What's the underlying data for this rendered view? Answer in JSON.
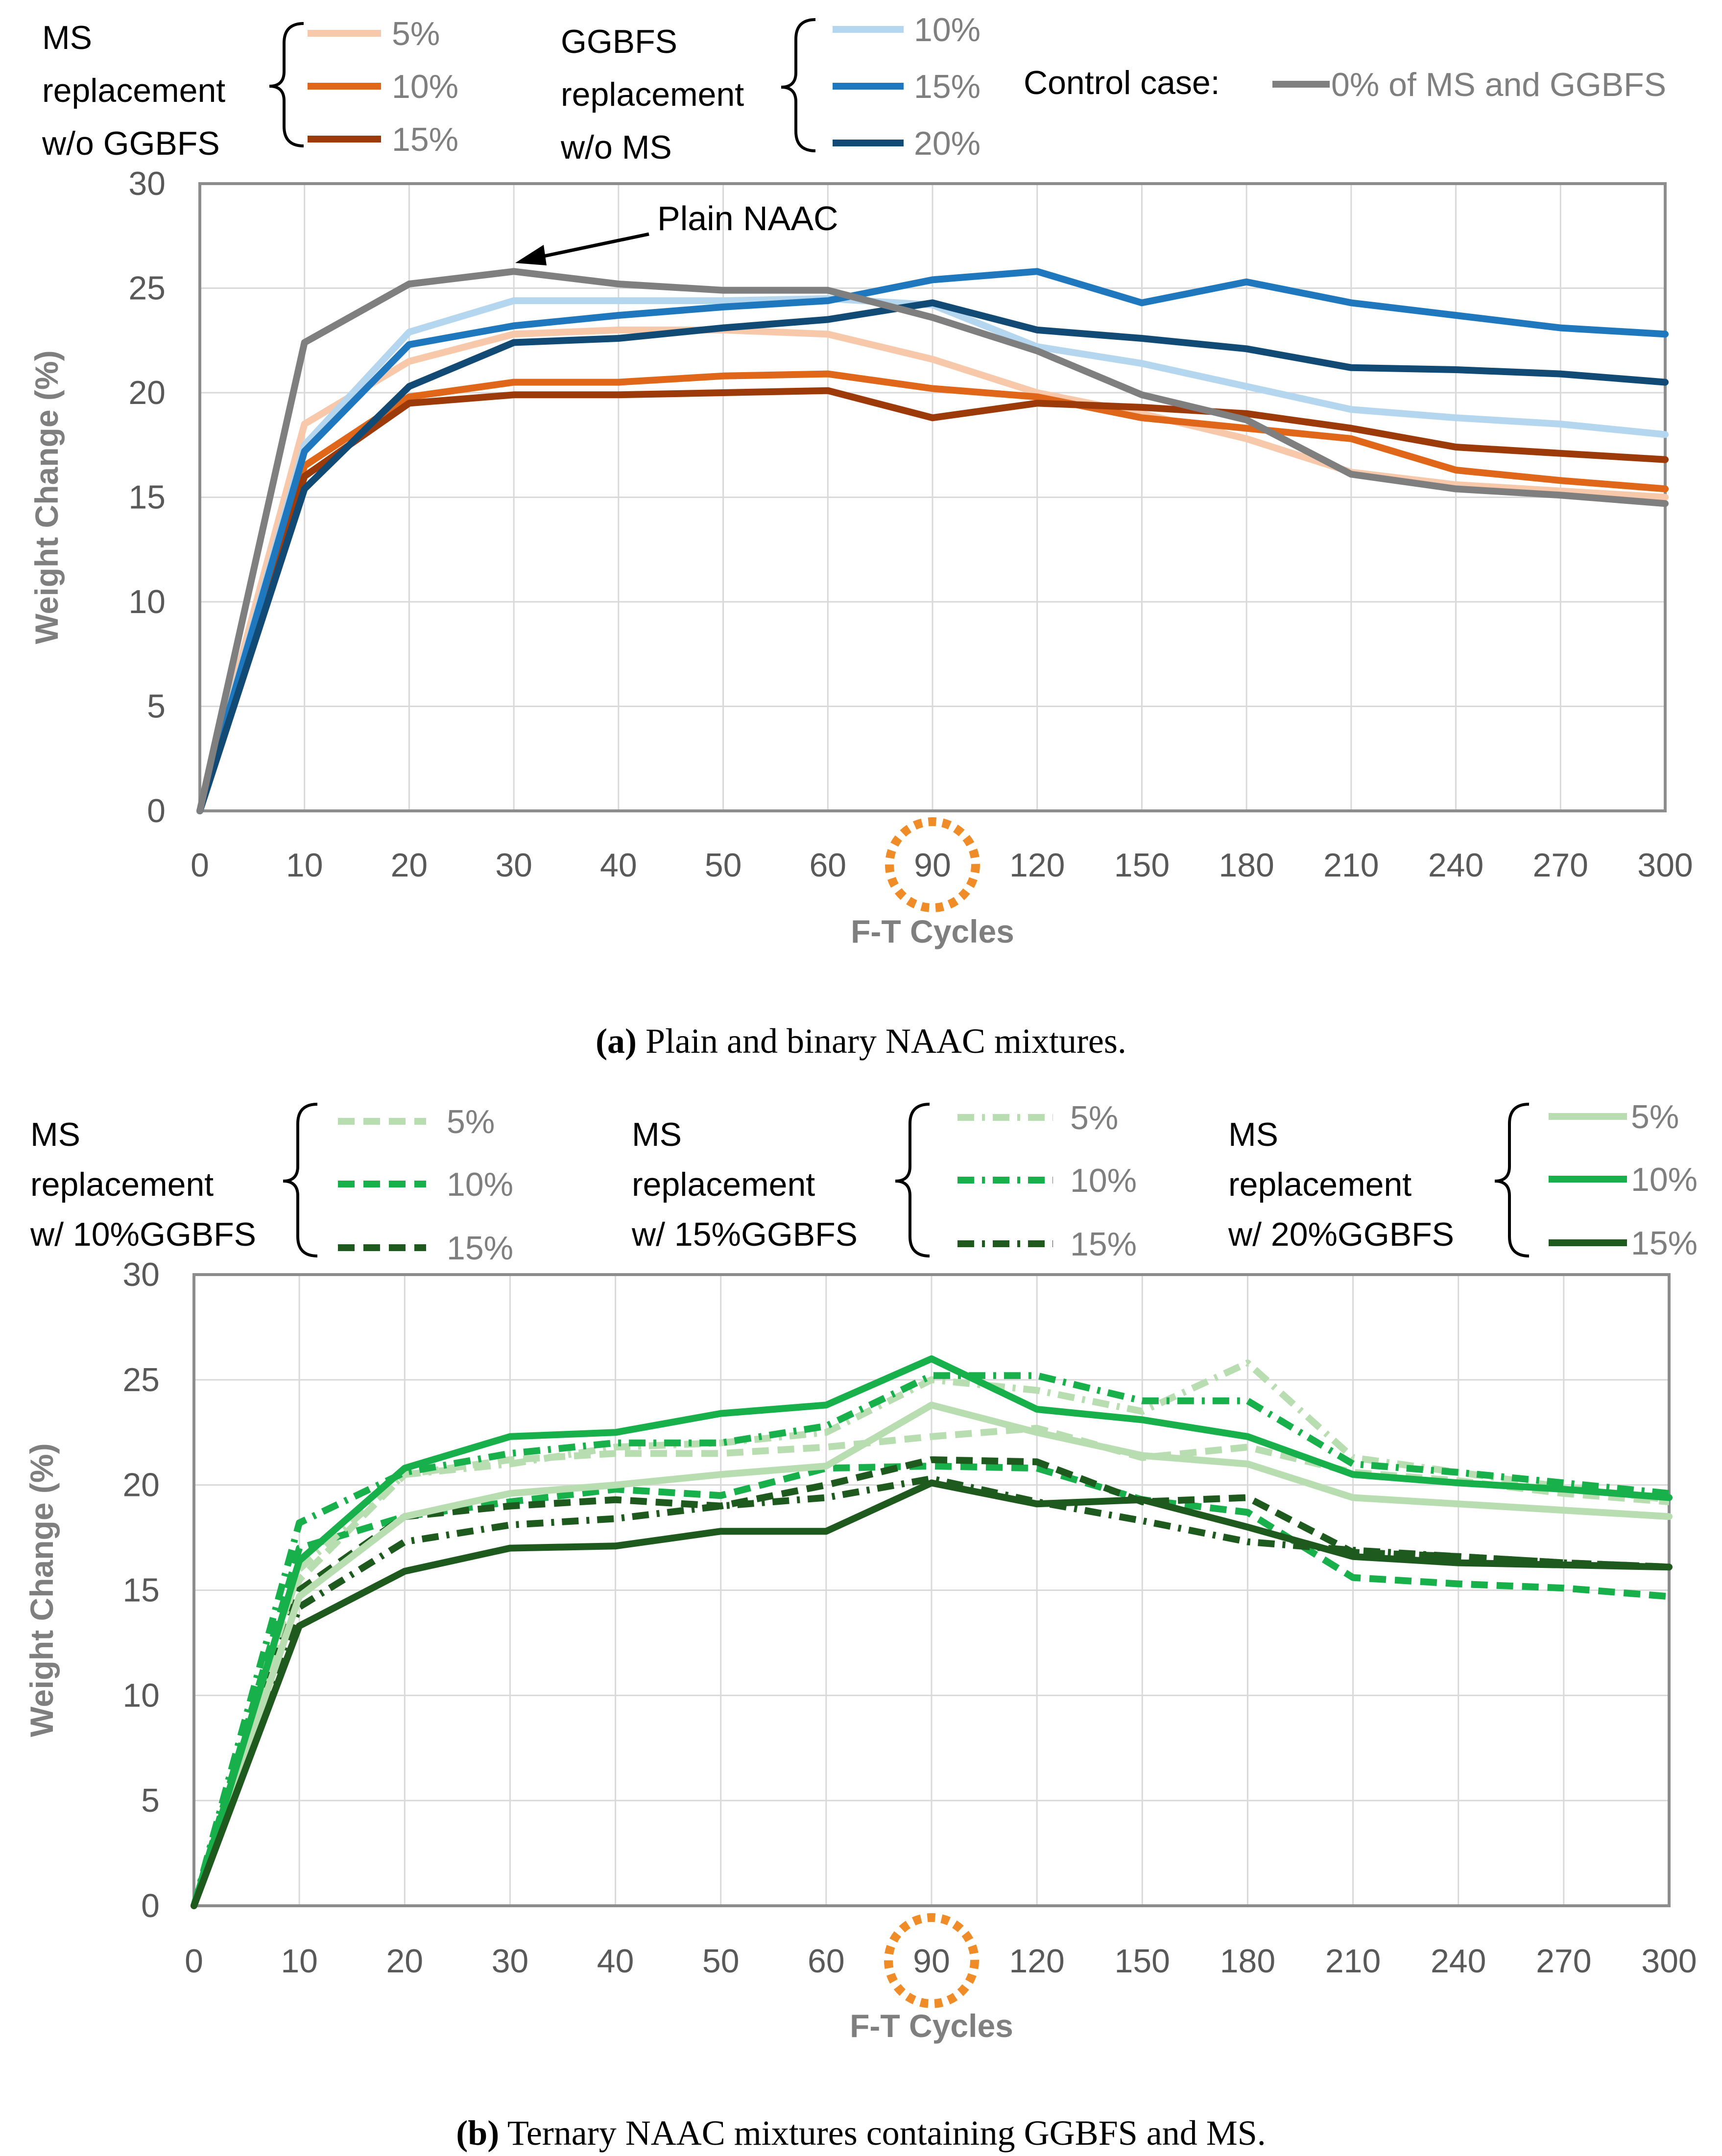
{
  "colors": {
    "ms5": "#f8c8aa",
    "ms10": "#e0661a",
    "ms15": "#9c3a0a",
    "gg10": "#b4d6ee",
    "gg15": "#1f78bd",
    "gg20": "#104a75",
    "control": "#7f7f7f",
    "tern5": "#b8ddb0",
    "tern10": "#17b04a",
    "tern15": "#1e5a1e",
    "axis_text": "#595959",
    "axis_title": "#7f7f7f",
    "grid": "#d9d9d9",
    "highlight": "#f08c28"
  },
  "chart_data": [
    {
      "id": "a",
      "type": "line",
      "caption_label": "(a)",
      "caption_text": " Plain and binary NAAC mixtures.",
      "xlabel": "F-T Cycles",
      "ylabel": "Weight Change (%)",
      "ylim": [
        0,
        30
      ],
      "yticks": [
        0,
        5,
        10,
        15,
        20,
        25,
        30
      ],
      "categories": [
        "0",
        "10",
        "20",
        "30",
        "40",
        "50",
        "60",
        "90",
        "120",
        "150",
        "180",
        "210",
        "240",
        "270",
        "300"
      ],
      "highlighted_category": "90",
      "annotation": "Plain NAAC",
      "legend_groups": [
        {
          "label_lines": [
            "MS",
            "replacement",
            "w/o GGBFS"
          ],
          "entries": [
            "ms5",
            "ms10",
            "ms15"
          ]
        },
        {
          "label_lines": [
            "GGBFS",
            "replacement",
            "w/o MS"
          ],
          "entries": [
            "gg10",
            "gg15",
            "gg20"
          ]
        },
        {
          "label_lines": [
            "Control case:"
          ],
          "entries": [
            "control"
          ]
        }
      ],
      "series": [
        {
          "key": "ms5",
          "name": "5%",
          "dash": "solid",
          "values": [
            0,
            18.5,
            21.5,
            22.8,
            23.0,
            23.0,
            22.8,
            21.6,
            20.0,
            19.0,
            17.8,
            16.2,
            15.6,
            15.3,
            15.0
          ]
        },
        {
          "key": "ms10",
          "name": "10%",
          "dash": "solid",
          "values": [
            0,
            16.5,
            19.8,
            20.5,
            20.5,
            20.8,
            20.9,
            20.2,
            19.8,
            18.8,
            18.3,
            17.8,
            16.3,
            15.8,
            15.4
          ]
        },
        {
          "key": "ms15",
          "name": "15%",
          "dash": "solid",
          "values": [
            0,
            16.0,
            19.5,
            19.9,
            19.9,
            20.0,
            20.1,
            18.8,
            19.5,
            19.3,
            19.0,
            18.3,
            17.4,
            17.1,
            16.8
          ]
        },
        {
          "key": "gg10",
          "name": "10%",
          "dash": "solid",
          "values": [
            0,
            17.5,
            22.9,
            24.4,
            24.4,
            24.4,
            24.5,
            24.2,
            22.2,
            21.4,
            20.3,
            19.2,
            18.8,
            18.5,
            18.0
          ]
        },
        {
          "key": "gg15",
          "name": "15%",
          "dash": "solid",
          "values": [
            0,
            17.2,
            22.3,
            23.2,
            23.7,
            24.1,
            24.4,
            25.4,
            25.8,
            24.3,
            25.3,
            24.3,
            23.7,
            23.1,
            22.8
          ]
        },
        {
          "key": "gg20",
          "name": "20%",
          "dash": "solid",
          "values": [
            0,
            15.4,
            20.3,
            22.4,
            22.6,
            23.1,
            23.5,
            24.3,
            23.0,
            22.6,
            22.1,
            21.2,
            21.1,
            20.9,
            20.5
          ]
        },
        {
          "key": "control",
          "name": "0% of MS and GGBFS",
          "dash": "solid",
          "values": [
            0,
            22.4,
            25.2,
            25.8,
            25.2,
            24.9,
            24.9,
            23.6,
            22.0,
            19.9,
            18.7,
            16.1,
            15.4,
            15.1,
            14.7
          ]
        }
      ]
    },
    {
      "id": "b",
      "type": "line",
      "caption_label": "(b)",
      "caption_text": " Ternary NAAC mixtures containing GGBFS and MS.",
      "xlabel": "F-T Cycles",
      "ylabel": "Weight Change (%)",
      "ylim": [
        0,
        30
      ],
      "yticks": [
        0,
        5,
        10,
        15,
        20,
        25,
        30
      ],
      "categories": [
        "0",
        "10",
        "20",
        "30",
        "40",
        "50",
        "60",
        "90",
        "120",
        "150",
        "180",
        "210",
        "240",
        "270",
        "300"
      ],
      "highlighted_category": "90",
      "legend_groups": [
        {
          "label_lines": [
            "MS",
            "replacement",
            "w/ 10%GGBFS"
          ],
          "entries": [
            "g10_5",
            "g10_10",
            "g10_15"
          ]
        },
        {
          "label_lines": [
            "MS",
            "replacement",
            "w/ 15%GGBFS"
          ],
          "entries": [
            "g15_5",
            "g15_10",
            "g15_15"
          ]
        },
        {
          "label_lines": [
            "MS",
            "replacement",
            "w/ 20%GGBFS"
          ],
          "entries": [
            "g20_5",
            "g20_10",
            "g20_15"
          ]
        }
      ],
      "series": [
        {
          "key": "g10_5",
          "name": "5%",
          "color": "tern5",
          "dash": "dash",
          "values": [
            0,
            15.5,
            20.5,
            21.2,
            21.5,
            21.5,
            21.8,
            22.3,
            22.7,
            21.3,
            21.8,
            20.6,
            20.2,
            19.6,
            19.2
          ]
        },
        {
          "key": "g10_10",
          "name": "10%",
          "color": "tern10",
          "dash": "dash",
          "values": [
            0,
            17.0,
            18.5,
            19.2,
            19.8,
            19.5,
            20.8,
            20.9,
            20.8,
            19.3,
            18.7,
            15.6,
            15.3,
            15.1,
            14.7
          ]
        },
        {
          "key": "g10_15",
          "name": "15%",
          "color": "tern15",
          "dash": "dash",
          "values": [
            0,
            15.0,
            18.5,
            19.0,
            19.3,
            19.0,
            20.0,
            21.2,
            21.1,
            19.2,
            19.4,
            16.8,
            16.6,
            16.3,
            16.1
          ]
        },
        {
          "key": "g15_5",
          "name": "5%",
          "color": "tern5",
          "dash": "dashdot",
          "values": [
            0,
            16.0,
            20.5,
            21.0,
            21.8,
            22.0,
            22.5,
            25.0,
            24.5,
            23.5,
            25.8,
            21.3,
            20.6,
            19.9,
            19.3
          ]
        },
        {
          "key": "g15_10",
          "name": "10%",
          "color": "tern10",
          "dash": "dashdot",
          "values": [
            0,
            18.2,
            20.6,
            21.5,
            22.0,
            22.0,
            22.8,
            25.2,
            25.2,
            24.0,
            24.0,
            21.0,
            20.6,
            20.1,
            19.6
          ]
        },
        {
          "key": "g15_15",
          "name": "15%",
          "color": "tern15",
          "dash": "dashdot",
          "values": [
            0,
            14.2,
            17.3,
            18.1,
            18.4,
            19.0,
            19.4,
            20.3,
            19.2,
            18.3,
            17.3,
            16.9,
            16.6,
            16.3,
            16.1
          ]
        },
        {
          "key": "g20_5",
          "name": "5%",
          "color": "tern5",
          "dash": "solid",
          "values": [
            0,
            14.7,
            18.5,
            19.6,
            20.0,
            20.5,
            20.9,
            23.8,
            22.5,
            21.4,
            21.0,
            19.4,
            19.1,
            18.8,
            18.5
          ]
        },
        {
          "key": "g20_10",
          "name": "10%",
          "color": "tern10",
          "dash": "solid",
          "values": [
            0,
            16.4,
            20.8,
            22.3,
            22.5,
            23.4,
            23.8,
            26.0,
            23.6,
            23.1,
            22.3,
            20.5,
            20.1,
            19.8,
            19.4
          ]
        },
        {
          "key": "g20_15",
          "name": "15%",
          "color": "tern15",
          "dash": "solid",
          "values": [
            0,
            13.3,
            15.9,
            17.0,
            17.1,
            17.8,
            17.8,
            20.1,
            19.1,
            19.3,
            18.0,
            16.6,
            16.3,
            16.2,
            16.1
          ]
        }
      ]
    }
  ]
}
